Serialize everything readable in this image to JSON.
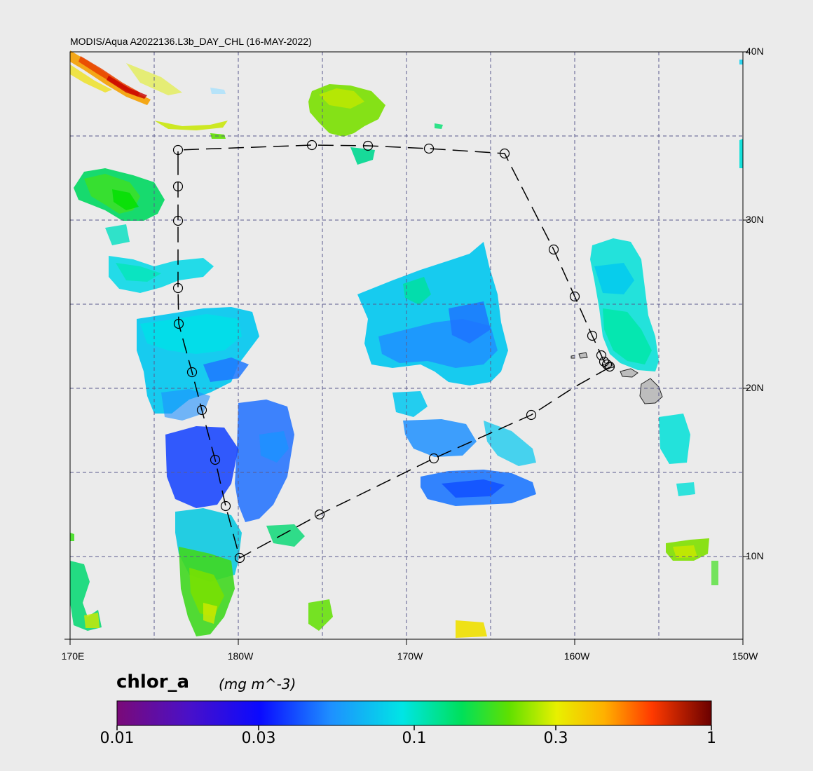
{
  "map": {
    "title": "MODIS/Aqua A2022136.L3b_DAY_CHL (16-MAY-2022)",
    "lat_labels": [
      "40N",
      "30N",
      "20N",
      "10N"
    ],
    "lon_labels": [
      "170E",
      "180W",
      "170W",
      "160W",
      "150W"
    ],
    "lat_range": [
      5,
      40
    ],
    "lon_range": [
      170,
      210
    ],
    "grid": "dashed"
  },
  "colorbar": {
    "variable": "chlor_a",
    "units": "(mg m^-3)",
    "scale": "log",
    "range": [
      0.01,
      1
    ],
    "tick_labels": [
      "0.01",
      "0.03",
      "0.1",
      "0.3",
      "1"
    ],
    "tick_values": [
      0.01,
      0.03,
      0.1,
      0.3,
      1
    ]
  },
  "colors": {
    "background": "#ebebeb",
    "grid_line": "#5a5a8c",
    "land": "#bdbdbd",
    "track": "#000000"
  }
}
